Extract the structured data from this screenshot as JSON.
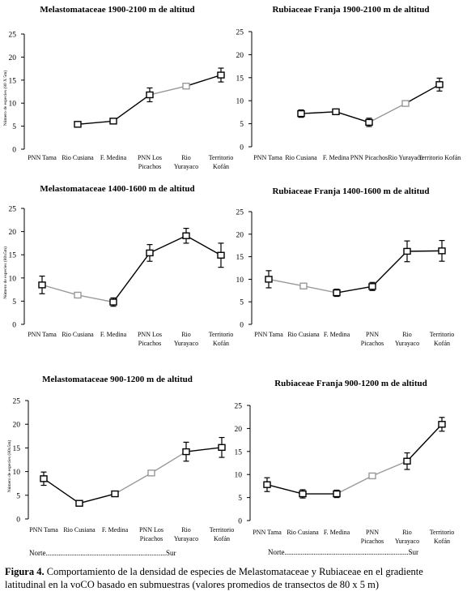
{
  "chart_data": [
    {
      "type": "line",
      "title": "Melastomataceae 1900-2100 m de altitud",
      "ylabel": "Número de especies (80 X 5m)",
      "ylim": [
        0,
        25
      ],
      "yticks": [
        0,
        5,
        10,
        15,
        20,
        25
      ],
      "categories": [
        [
          "PNN Tama"
        ],
        [
          "Rio Cusiana"
        ],
        [
          "F. Medina"
        ],
        [
          "PNN Los",
          "Picachos"
        ],
        [
          "Rio",
          "Yurayaco"
        ],
        [
          "Territorio",
          "Kofán"
        ]
      ],
      "values": [
        null,
        5.4,
        6.1,
        11.8,
        13.7,
        16.1
      ],
      "errors": [
        null,
        0.5,
        0.5,
        1.5,
        0,
        1.5
      ],
      "segment_colors": [
        "#000000",
        "#000000",
        "#999999",
        "#000000"
      ]
    },
    {
      "type": "line",
      "title": "Rubiaceae Franja 1900-2100 m de altitud",
      "ylabel": "",
      "ylim": [
        0,
        25
      ],
      "yticks": [
        0,
        5,
        10,
        15,
        20,
        25
      ],
      "categories": [
        [
          "PNN Tama"
        ],
        [
          "Rio Cusiana"
        ],
        [
          "F. Medina"
        ],
        [
          "PNN Picachos"
        ],
        [
          "Rio Yurayaco"
        ],
        [
          "Territorio Kofán"
        ]
      ],
      "values": [
        null,
        7.2,
        7.6,
        5.3,
        9.4,
        13.5
      ],
      "errors": [
        null,
        0.8,
        0.5,
        0.9,
        0,
        1.4
      ],
      "segment_colors": [
        "#000000",
        "#000000",
        "#999999",
        "#000000"
      ]
    },
    {
      "type": "line",
      "title": "Melastomataceae 1400-1600 m de altitud",
      "ylabel": "Número de especies (80x5m)",
      "ylim": [
        0,
        25
      ],
      "yticks": [
        0,
        5,
        10,
        15,
        20,
        25
      ],
      "categories": [
        [
          "PNN Tama"
        ],
        [
          "Rio Cusiana"
        ],
        [
          "F. Medina"
        ],
        [
          "PNN Los",
          "Picachos"
        ],
        [
          "Rio",
          "Yurayaco"
        ],
        [
          "Territorio",
          "Kofán"
        ]
      ],
      "values": [
        8.5,
        6.3,
        4.8,
        15.4,
        19.1,
        14.9
      ],
      "errors": [
        1.9,
        0,
        0.9,
        1.8,
        1.6,
        2.6
      ],
      "segment_colors": [
        "#999999",
        "#999999",
        "#000000",
        "#000000",
        "#000000"
      ]
    },
    {
      "type": "line",
      "title": "Rubiaceae Franja 1400-1600 m de altitud",
      "ylabel": "",
      "ylim": [
        0,
        25
      ],
      "yticks": [
        0,
        5,
        10,
        15,
        20,
        25
      ],
      "categories": [
        [
          "PNN Tama"
        ],
        [
          "Rio Cusiana"
        ],
        [
          "F. Medina"
        ],
        [
          "PNN",
          "Picachos"
        ],
        [
          "Rio",
          "Yurayaco"
        ],
        [
          "Territorio",
          "Kofán"
        ]
      ],
      "values": [
        10.0,
        8.5,
        7.0,
        8.4,
        16.2,
        16.3
      ],
      "errors": [
        1.9,
        0,
        0.8,
        0.9,
        2.3,
        2.3
      ],
      "segment_colors": [
        "#999999",
        "#999999",
        "#000000",
        "#000000",
        "#000000"
      ]
    },
    {
      "type": "line",
      "title": "Melastomataceae 900-1200 m de altitud",
      "ylabel": "Número de especies (80x5m)",
      "ylim": [
        0,
        25
      ],
      "yticks": [
        0,
        5,
        10,
        15,
        20,
        25
      ],
      "categories": [
        [
          "PNN Tama"
        ],
        [
          "Rio Cusiana"
        ],
        [
          "F. Medina"
        ],
        [
          "PNN Los",
          "Picachos"
        ],
        [
          "Rio",
          "Yurayaco"
        ],
        [
          "Territorio",
          "Kofán"
        ]
      ],
      "values": [
        8.5,
        3.3,
        5.3,
        9.7,
        14.2,
        15.1
      ],
      "errors": [
        1.4,
        0.4,
        0.4,
        0,
        2.0,
        2.1
      ],
      "segment_colors": [
        "#000000",
        "#000000",
        "#999999",
        "#999999",
        "#000000"
      ]
    },
    {
      "type": "line",
      "title": "Rubiaceae Franja 900-1200 m de altitud",
      "ylabel": "",
      "ylim": [
        0,
        25
      ],
      "yticks": [
        0,
        5,
        10,
        15,
        20,
        25
      ],
      "categories": [
        [
          "PNN Tama"
        ],
        [
          "Rio Cusiana"
        ],
        [
          "F. Medina"
        ],
        [
          "PNN",
          "Picachos"
        ],
        [
          "Rio",
          "Yurayaco"
        ],
        [
          "Territorio",
          "Kofán"
        ]
      ],
      "values": [
        7.8,
        5.8,
        5.8,
        9.7,
        12.9,
        20.9
      ],
      "errors": [
        1.5,
        0.9,
        0.8,
        0,
        1.8,
        1.5
      ],
      "segment_colors": [
        "#000000",
        "#000000",
        "#999999",
        "#999999",
        "#000000"
      ]
    }
  ],
  "direction_labels": {
    "left": "Norte..................................................................Sur",
    "right": "Norte....................................................................Sur"
  },
  "caption": {
    "label": "Figura 4.",
    "text": " Comportamiento de la densidad de especies de Melastomataceae y Rubiaceae en el gradiente latitudinal en la voCO basado en submuestras (valores promedios de transectos de 80 x 5 m)"
  }
}
